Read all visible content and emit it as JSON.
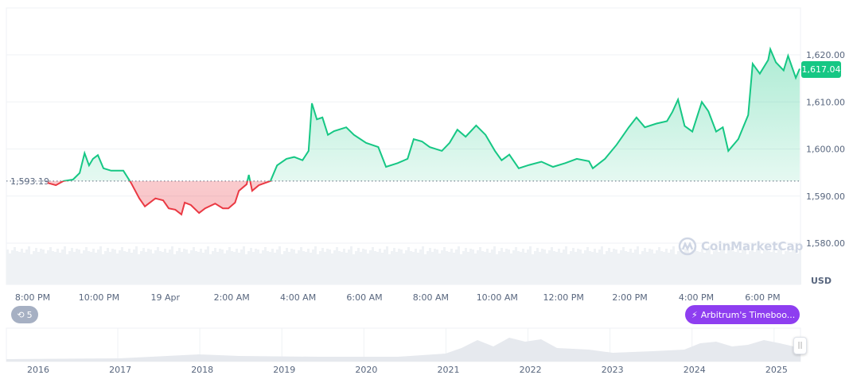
{
  "chart_data": {
    "type": "line",
    "currency_label": "USD",
    "reference_price": 1593.19,
    "reference_label": "1,593.19",
    "current_price": 1617.04,
    "current_price_label": "1,617.04",
    "ylim": [
      1578,
      1624
    ],
    "y_ticks": [
      "1,580.00",
      "1,590.00",
      "1,600.00",
      "1,610.00",
      "1,620.00"
    ],
    "y_tick_values": [
      1580,
      1590,
      1600,
      1610,
      1620
    ],
    "x_ticks": [
      "8:00 PM",
      "10:00 PM",
      "19 Apr",
      "2:00 AM",
      "4:00 AM",
      "6:00 AM",
      "8:00 AM",
      "10:00 AM",
      "12:00 PM",
      "2:00 PM",
      "4:00 PM",
      "6:00 PM"
    ],
    "x_tick_times": [
      "20:00",
      "22:00",
      "00:00",
      "02:00",
      "04:00",
      "06:00",
      "08:00",
      "10:00",
      "12:00",
      "14:00",
      "16:00",
      "18:00"
    ],
    "colors": {
      "up": "#16c784",
      "down": "#ea3943",
      "volume": "#eff2f5"
    },
    "grid": true,
    "series": [
      {
        "times": [
          "20:27",
          "20:42",
          "20:56",
          "21:13",
          "21:25",
          "21:34",
          "21:42",
          "21:49",
          "21:58",
          "22:08",
          "22:22",
          "22:44",
          "22:58",
          "23:13",
          "23:23",
          "23:42",
          "23:56",
          "00:06",
          "00:18",
          "00:29",
          "00:35",
          "00:46",
          "01:01",
          "01:12",
          "01:30",
          "01:44",
          "01:54",
          "02:06",
          "02:13",
          "02:27",
          "02:31",
          "02:37",
          "02:49",
          "03:10",
          "03:22",
          "03:39",
          "03:53",
          "04:08",
          "04:19",
          "04:25",
          "04:34",
          "04:44",
          "04:54",
          "05:05",
          "05:27",
          "05:41",
          "06:03",
          "06:25",
          "06:39",
          "07:00",
          "07:18",
          "07:29",
          "07:44",
          "07:58",
          "08:20",
          "08:34",
          "08:48",
          "09:03",
          "09:22",
          "09:39",
          "09:56",
          "10:08",
          "10:22",
          "10:39",
          "10:58",
          "11:20",
          "11:41",
          "12:03",
          "12:24",
          "12:46",
          "12:53",
          "13:15",
          "13:36",
          "13:58",
          "14:12",
          "14:27",
          "14:48",
          "15:07",
          "15:17",
          "15:27",
          "15:39",
          "15:53",
          "16:10",
          "16:22",
          "16:36",
          "16:48",
          "16:58",
          "17:16",
          "17:34",
          "17:42",
          "17:55",
          "18:10",
          "18:14",
          "18:24",
          "18:38",
          "18:46",
          "19:00",
          "19:07"
        ],
        "values": [
          1592.8,
          1592.3,
          1593.2,
          1593.5,
          1594.9,
          1599.1,
          1596.5,
          1597.9,
          1598.7,
          1595.9,
          1595.4,
          1595.4,
          1592.8,
          1589.5,
          1587.8,
          1589.5,
          1589.1,
          1587.4,
          1587.1,
          1586.1,
          1588.6,
          1588.1,
          1586.4,
          1587.4,
          1588.4,
          1587.4,
          1587.4,
          1588.6,
          1591.1,
          1592.5,
          1594.5,
          1591.1,
          1592.3,
          1593.2,
          1596.5,
          1597.9,
          1598.3,
          1597.6,
          1599.6,
          1609.7,
          1606.3,
          1606.7,
          1603.0,
          1603.8,
          1604.6,
          1603.0,
          1601.3,
          1600.4,
          1596.2,
          1597.0,
          1597.9,
          1602.1,
          1601.6,
          1600.4,
          1599.6,
          1601.3,
          1604.1,
          1602.6,
          1605.0,
          1603.0,
          1599.6,
          1597.6,
          1598.8,
          1595.9,
          1596.6,
          1597.3,
          1596.2,
          1597.0,
          1597.9,
          1597.4,
          1595.9,
          1597.9,
          1600.9,
          1604.6,
          1606.7,
          1604.6,
          1605.4,
          1605.9,
          1607.9,
          1610.5,
          1604.9,
          1603.7,
          1610.0,
          1608.0,
          1603.7,
          1604.6,
          1599.6,
          1602.1,
          1607.2,
          1618.1,
          1616.0,
          1618.9,
          1621.2,
          1618.4,
          1616.7,
          1619.8,
          1615.1,
          1617.04
        ]
      }
    ]
  },
  "watermark": "CoinMarketCap",
  "history_badge": {
    "icon": "history-icon",
    "count": "5"
  },
  "news_pill": {
    "icon": "lightning-icon",
    "label": "Arbitrum's Timeboo..."
  },
  "navigator": {
    "years": [
      "2016",
      "2017",
      "2018",
      "2019",
      "2020",
      "2021",
      "2022",
      "2023",
      "2024",
      "2025"
    ],
    "handle_icon": "pause-grip-icon"
  }
}
